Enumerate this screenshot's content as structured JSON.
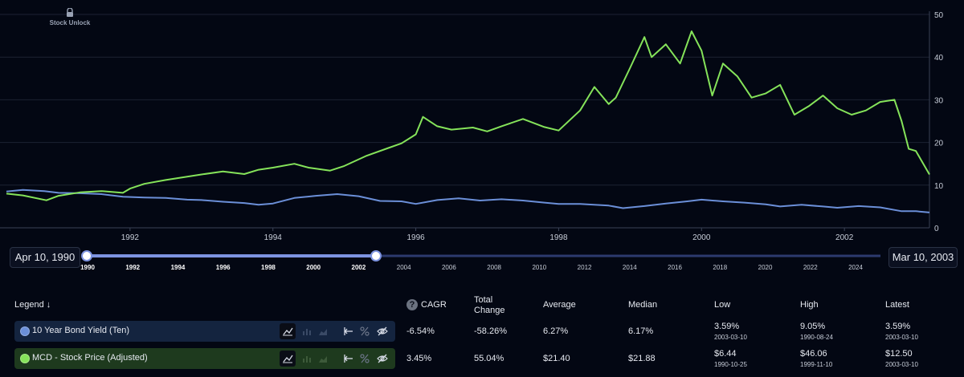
{
  "brand": {
    "name": "Stock Unlock"
  },
  "colors": {
    "background": "#030713",
    "bond": "#6b8fd8",
    "stock": "#85e35a",
    "grid": "#1c2233",
    "slider": "#7d93e0"
  },
  "range": {
    "start_label": "Apr 10, 1990",
    "end_label": "Mar 10, 2003",
    "start_year": 1990,
    "end_year": 2002
  },
  "slider": {
    "years": [
      "1990",
      "1992",
      "1994",
      "1996",
      "1998",
      "2000",
      "2002",
      "2004",
      "2006",
      "2008",
      "2010",
      "2012",
      "2014",
      "2016",
      "2018",
      "2020",
      "2022",
      "2024"
    ]
  },
  "chart_data": {
    "type": "line",
    "x_ticks": [
      "1992",
      "1994",
      "1996",
      "1998",
      "2000",
      "2002"
    ],
    "y_ticks": [
      "0",
      "10",
      "20",
      "30",
      "40",
      "50"
    ],
    "ylim": [
      0,
      50
    ],
    "xlim": [
      1990.27,
      2003.19
    ],
    "series": [
      {
        "name": "10 Year Bond Yield (Ten)",
        "color": "#6b8fd8",
        "x": [
          1990.27,
          1990.5,
          1990.8,
          1991.0,
          1991.3,
          1991.6,
          1991.9,
          1992.2,
          1992.5,
          1992.8,
          1993.0,
          1993.3,
          1993.6,
          1993.8,
          1994.0,
          1994.3,
          1994.6,
          1994.9,
          1995.2,
          1995.5,
          1995.8,
          1996.0,
          1996.3,
          1996.6,
          1996.9,
          1997.2,
          1997.5,
          1997.8,
          1998.0,
          1998.3,
          1998.7,
          1998.9,
          1999.2,
          1999.5,
          1999.8,
          2000.0,
          2000.3,
          2000.6,
          2000.9,
          2001.1,
          2001.4,
          2001.7,
          2001.9,
          2002.2,
          2002.5,
          2002.8,
          2003.0,
          2003.19
        ],
        "values": [
          8.5,
          8.9,
          8.6,
          8.2,
          8.1,
          7.9,
          7.3,
          7.1,
          7.0,
          6.6,
          6.5,
          6.1,
          5.8,
          5.4,
          5.7,
          7.0,
          7.5,
          7.9,
          7.4,
          6.3,
          6.2,
          5.6,
          6.5,
          6.9,
          6.4,
          6.7,
          6.4,
          5.9,
          5.6,
          5.6,
          5.2,
          4.6,
          5.1,
          5.7,
          6.2,
          6.6,
          6.2,
          5.9,
          5.5,
          5.0,
          5.4,
          5.0,
          4.7,
          5.1,
          4.8,
          3.9,
          3.9,
          3.59
        ]
      },
      {
        "name": "MCD - Stock Price (Adjusted)",
        "color": "#85e35a",
        "x": [
          1990.27,
          1990.5,
          1990.83,
          1991.0,
          1991.3,
          1991.6,
          1991.9,
          1992.0,
          1992.2,
          1992.5,
          1992.8,
          1993.0,
          1993.3,
          1993.6,
          1993.8,
          1994.0,
          1994.3,
          1994.5,
          1994.8,
          1995.0,
          1995.3,
          1995.6,
          1995.8,
          1996.0,
          1996.1,
          1996.3,
          1996.5,
          1996.8,
          1997.0,
          1997.2,
          1997.5,
          1997.8,
          1998.0,
          1998.3,
          1998.5,
          1998.7,
          1998.8,
          1999.0,
          1999.2,
          1999.3,
          1999.5,
          1999.7,
          1999.86,
          2000.0,
          2000.15,
          2000.3,
          2000.5,
          2000.7,
          2000.9,
          2001.1,
          2001.3,
          2001.5,
          2001.7,
          2001.9,
          2002.1,
          2002.3,
          2002.5,
          2002.7,
          2002.8,
          2002.9,
          2003.0,
          2003.19
        ],
        "values": [
          8.0,
          7.6,
          6.44,
          7.5,
          8.3,
          8.6,
          8.2,
          9.2,
          10.3,
          11.2,
          12.0,
          12.5,
          13.2,
          12.6,
          13.6,
          14.1,
          15.0,
          14.1,
          13.4,
          14.5,
          16.8,
          18.6,
          19.8,
          21.9,
          26.0,
          23.8,
          23.0,
          23.5,
          22.6,
          23.8,
          25.5,
          23.6,
          22.8,
          27.5,
          33.0,
          29.0,
          30.5,
          37.5,
          44.7,
          40.0,
          43.0,
          38.5,
          46.06,
          41.5,
          31.0,
          38.5,
          35.5,
          30.5,
          31.5,
          33.5,
          26.5,
          28.5,
          31.0,
          28.0,
          26.5,
          27.5,
          29.5,
          30.0,
          25.0,
          18.5,
          18.0,
          12.5
        ]
      }
    ]
  },
  "legend": {
    "title": "Legend",
    "sort_glyph": "↓"
  },
  "columns": {
    "cagr": "CAGR",
    "total_change_1": "Total",
    "total_change_2": "Change",
    "average": "Average",
    "median": "Median",
    "low": "Low",
    "high": "High",
    "latest": "Latest"
  },
  "rows": [
    {
      "name": "10 Year Bond Yield (Ten)",
      "color": "#6b8fd8",
      "cagr": "-6.54%",
      "total_change": "-58.26%",
      "average": "6.27%",
      "median": "6.17%",
      "low": "3.59%",
      "low_date": "2003-03-10",
      "high": "9.05%",
      "high_date": "1990-08-24",
      "latest": "3.59%",
      "latest_date": "2003-03-10"
    },
    {
      "name": "MCD - Stock Price (Adjusted)",
      "color": "#85e35a",
      "cagr": "3.45%",
      "total_change": "55.04%",
      "average": "$21.40",
      "median": "$21.88",
      "low": "$6.44",
      "low_date": "1990-10-25",
      "high": "$46.06",
      "high_date": "1999-11-10",
      "latest": "$12.50",
      "latest_date": "2003-03-10"
    }
  ]
}
